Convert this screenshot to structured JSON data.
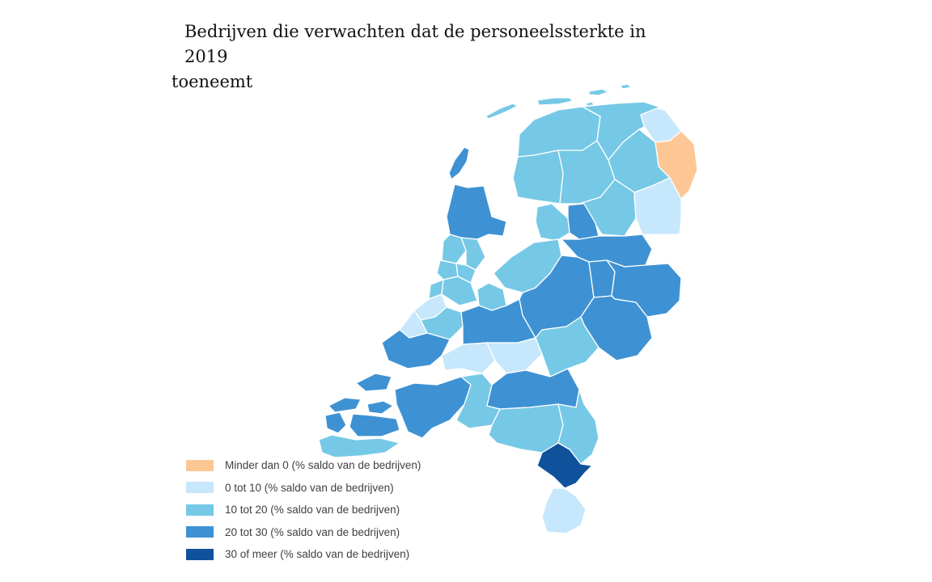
{
  "title": {
    "line1": "Bedrijven die verwachten dat de personeelssterkte in 2019",
    "line2": "toeneemt"
  },
  "colors": {
    "c_neg": "#fcc794",
    "c_0_10": "#c7e7fc",
    "c_10_20": "#76c9e6",
    "c_20_30": "#3e92d3",
    "c_30_plus": "#0f519b",
    "border": "#ffffff"
  },
  "legend": [
    {
      "label": "Minder dan 0 (% saldo van de bedrijven)",
      "color": "#fcc794"
    },
    {
      "label": "0 tot 10 (% saldo van de bedrijven)",
      "color": "#c7e7fc"
    },
    {
      "label": "10 tot 20 (% saldo van de bedrijven)",
      "color": "#76c9e6"
    },
    {
      "label": "20 tot 30 (% saldo van de bedrijven)",
      "color": "#3e92d3"
    },
    {
      "label": "30 of meer (% saldo van de bedrijven)",
      "color": "#0f519b"
    }
  ]
}
